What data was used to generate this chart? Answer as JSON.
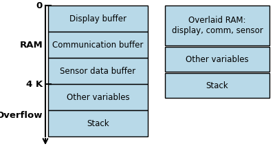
{
  "left_blocks": [
    {
      "label": "Display buffer"
    },
    {
      "label": "Communication buffer"
    },
    {
      "label": "Sensor data buffer"
    },
    {
      "label": "Other variables"
    },
    {
      "label": "Stack"
    }
  ],
  "right_blocks": [
    {
      "label": "Overlaid RAM:\ndisplay, comm, sensor"
    },
    {
      "label": "Other variables"
    },
    {
      "label": "Stack"
    }
  ],
  "block_color": "#b8d9e8",
  "block_edge_color": "#000000",
  "label_0": "0",
  "label_ram": "RAM",
  "label_4k": "4 K",
  "label_overflow": "Overflow",
  "font_size": 8.5,
  "label_font_size": 9.5
}
